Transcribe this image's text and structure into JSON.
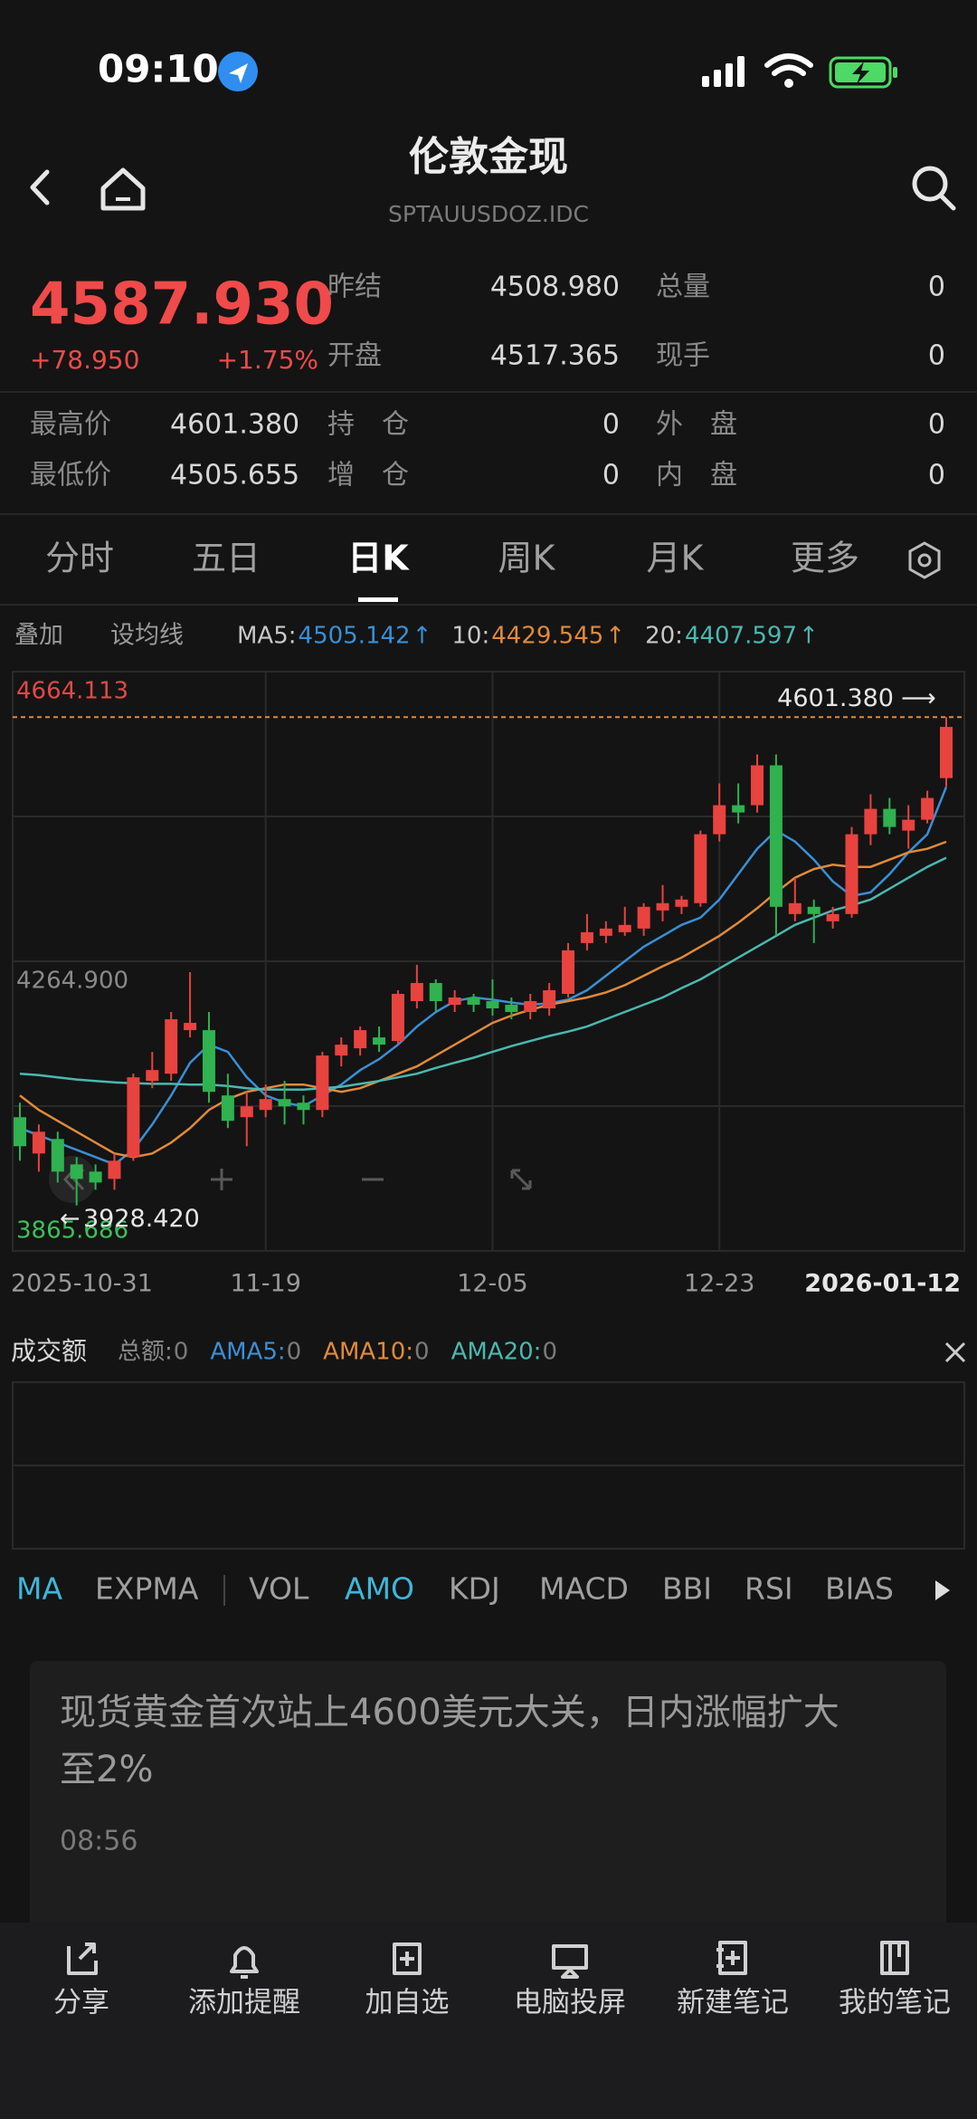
{
  "status_bar": {
    "time": "09:10"
  },
  "header": {
    "title": "伦敦金现",
    "code": "SPTAUUSDOZ.IDC"
  },
  "quote": {
    "price": "4587.930",
    "change": "+78.950",
    "change_pct": "+1.75%",
    "fields": [
      {
        "label": "昨结",
        "value": "4508.980"
      },
      {
        "label": "总量",
        "value": "0"
      },
      {
        "label": "开盘",
        "value": "4517.365"
      },
      {
        "label": "现手",
        "value": "0"
      },
      {
        "label": "最高价",
        "value": "4601.380"
      },
      {
        "label": "持　仓",
        "value": "0"
      },
      {
        "label": "外　盘",
        "value": "0"
      },
      {
        "label": "最低价",
        "value": "4505.655"
      },
      {
        "label": "增　仓",
        "value": "0"
      },
      {
        "label": "内　盘",
        "value": "0"
      }
    ]
  },
  "tabs": {
    "items": [
      "分时",
      "五日",
      "日K",
      "周K",
      "月K",
      "更多"
    ],
    "active": 2
  },
  "toolbar": [
    "叠加",
    "设均线"
  ],
  "chart_data": {
    "type": "candlestick",
    "categories": [
      "2025-10-31",
      null,
      null,
      null,
      null,
      null,
      null,
      null,
      null,
      null,
      null,
      null,
      null,
      "11-19",
      null,
      null,
      null,
      null,
      null,
      null,
      null,
      null,
      null,
      null,
      null,
      "12-05",
      null,
      null,
      null,
      null,
      null,
      null,
      null,
      null,
      null,
      null,
      null,
      "12-23",
      null,
      null,
      null,
      null,
      null,
      null,
      null,
      null,
      null,
      null,
      null,
      "2026-01-12"
    ],
    "open": [
      4050,
      4000,
      4020,
      3985,
      3975,
      3965,
      3995,
      4100,
      4110,
      4170,
      4170,
      4080,
      4050,
      4060,
      4075,
      4070,
      4060,
      4135,
      4145,
      4160,
      4155,
      4210,
      4235,
      4205,
      4215,
      4210,
      4205,
      4195,
      4200,
      4220,
      4290,
      4300,
      4305,
      4310,
      4335,
      4340,
      4345,
      4440,
      4480,
      4480,
      4535,
      4330,
      4340,
      4320,
      4330,
      4440,
      4475,
      4445,
      4460,
      4517.365
    ],
    "high": [
      4070,
      4040,
      4030,
      3995,
      3985,
      4000,
      4110,
      4140,
      4195,
      4250,
      4195,
      4110,
      4085,
      4095,
      4100,
      4080,
      4140,
      4160,
      4175,
      4175,
      4225,
      4260,
      4240,
      4225,
      4220,
      4240,
      4215,
      4220,
      4235,
      4290,
      4330,
      4320,
      4340,
      4345,
      4370,
      4355,
      4445,
      4510,
      4510,
      4550,
      4550,
      4380,
      4350,
      4340,
      4450,
      4495,
      4490,
      4480,
      4500,
      4601.38
    ],
    "low": [
      3990,
      3975,
      3960,
      3928.42,
      3950,
      3950,
      3990,
      4090,
      4100,
      4160,
      4070,
      4035,
      4010,
      4050,
      4040,
      4040,
      4050,
      4120,
      4135,
      4140,
      4150,
      4200,
      4195,
      4195,
      4195,
      4190,
      4185,
      4185,
      4190,
      4215,
      4280,
      4290,
      4300,
      4300,
      4320,
      4330,
      4340,
      4430,
      4455,
      4470,
      4300,
      4320,
      4290,
      4310,
      4325,
      4425,
      4440,
      4420,
      4455,
      4505.655
    ],
    "close": [
      4010,
      4030,
      3975,
      3965,
      3960,
      3990,
      4105,
      4115,
      4185,
      4180,
      4085,
      4045,
      4065,
      4075,
      4065,
      4060,
      4135,
      4150,
      4170,
      4150,
      4220,
      4235,
      4210,
      4215,
      4205,
      4200,
      4195,
      4210,
      4225,
      4280,
      4305,
      4310,
      4315,
      4340,
      4345,
      4350,
      4440,
      4480,
      4470,
      4535,
      4340,
      4345,
      4330,
      4330,
      4440,
      4475,
      4450,
      4460,
      4490,
      4587.93
    ],
    "up_color": "#e8433f",
    "down_color": "#2fb24f",
    "series": [
      {
        "name": "MA5:",
        "color": "#3a8fd6",
        "values": [
          4035,
          4025,
          4015,
          4005,
          3995,
          3985,
          4005,
          4040,
          4080,
          4125,
          4150,
          4140,
          4105,
          4080,
          4070,
          4065,
          4080,
          4095,
          4115,
          4130,
          4150,
          4175,
          4195,
          4210,
          4215,
          4212,
          4208,
          4205,
          4207,
          4212,
          4225,
          4245,
          4265,
          4285,
          4300,
          4315,
          4325,
          4350,
          4385,
          4420,
          4445,
          4430,
          4405,
          4375,
          4355,
          4360,
          4385,
          4415,
          4440,
          4505.142
        ]
      },
      {
        "name": "10:",
        "color": "#e08a3c",
        "values": [
          4080,
          4060,
          4045,
          4030,
          4015,
          4000,
          3995,
          4000,
          4015,
          4035,
          4060,
          4075,
          4085,
          4090,
          4095,
          4095,
          4090,
          4085,
          4090,
          4100,
          4110,
          4120,
          4135,
          4150,
          4165,
          4180,
          4190,
          4198,
          4205,
          4210,
          4215,
          4222,
          4232,
          4245,
          4258,
          4270,
          4285,
          4300,
          4318,
          4338,
          4360,
          4380,
          4392,
          4398,
          4395,
          4395,
          4405,
          4415,
          4420,
          4429.545
        ]
      },
      {
        "name": "20:",
        "color": "#4bb8b0",
        "values": [
          4110,
          4108,
          4105,
          4102,
          4100,
          4098,
          4097,
          4096,
          4096,
          4095,
          4095,
          4093,
          4090,
          4088,
          4088,
          4088,
          4090,
          4092,
          4096,
          4100,
          4105,
          4110,
          4118,
          4125,
          4132,
          4140,
          4148,
          4155,
          4162,
          4168,
          4175,
          4185,
          4195,
          4205,
          4215,
          4228,
          4240,
          4255,
          4270,
          4285,
          4300,
          4315,
          4325,
          4335,
          4342,
          4350,
          4365,
          4380,
          4395,
          4407.597
        ]
      }
    ],
    "trend_arrow": "↑",
    "ylim": [
      3865.686,
      4664.113
    ],
    "yticks": [
      4664.113,
      {
        "value": 4264.9,
        "label": "4264.900"
      },
      3865.686
    ],
    "ytick_colors": [
      "#e0484a",
      "#8a8a8a",
      "#3fbf5a"
    ],
    "grid": true,
    "high_marker": {
      "value": 4601.38,
      "label": "4601.380",
      "arrow": "⟶",
      "color": "#e08a3c"
    },
    "low_marker": {
      "value": 3928.42,
      "label": "3928.420",
      "arrow": "←"
    }
  },
  "volume_panel": {
    "title": "成交额",
    "items": [
      {
        "name": "总额:",
        "value": "0",
        "color": "#8a8a8a"
      },
      {
        "name": "AMA5:",
        "value": "0",
        "color": "#3a8fd6"
      },
      {
        "name": "AMA10:",
        "value": "0",
        "color": "#e08a3c"
      },
      {
        "name": "AMA20:",
        "value": "0",
        "color": "#4bb8b0"
      }
    ]
  },
  "indicators": {
    "items": [
      "MA",
      "EXPMA",
      "VOL",
      "AMO",
      "KDJ",
      "MACD",
      "BBI",
      "RSI",
      "BIAS"
    ],
    "active": [
      0,
      3
    ]
  },
  "news": {
    "lines": [
      "现货黄金首次站上4600美元大关，日内涨幅扩大",
      "至2%"
    ],
    "time": "08:56"
  },
  "nav": [
    "分享",
    "添加提醒",
    "加自选",
    "电脑投屏",
    "新建笔记",
    "我的笔记"
  ]
}
